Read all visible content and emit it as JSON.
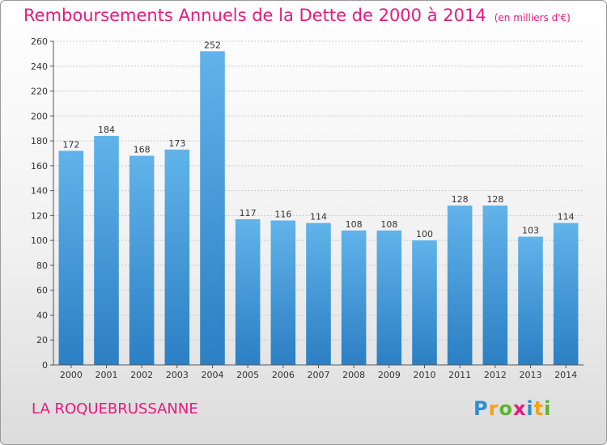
{
  "title": "Remboursements Annuels de la Dette de 2000 à 2014",
  "unit": "(en milliers d'€)",
  "commune": "LA ROQUEBRUSSANNE",
  "logo": {
    "letters": [
      "P",
      "r",
      "o",
      "x",
      "i",
      "t",
      "i"
    ],
    "colors": [
      "#2b8fd6",
      "#f3a21b",
      "#5bb531",
      "#e8197e",
      "#2b8fd6",
      "#f3a21b",
      "#5bb531"
    ]
  },
  "colors": {
    "bar_top": "#61b3ea",
    "bar_bottom": "#2b7fc3",
    "title": "#e8197e"
  },
  "chart_data": {
    "type": "bar",
    "categories": [
      "2000",
      "2001",
      "2002",
      "2003",
      "2004",
      "2005",
      "2006",
      "2007",
      "2008",
      "2009",
      "2010",
      "2011",
      "2012",
      "2013",
      "2014"
    ],
    "values": [
      172,
      184,
      168,
      173,
      252,
      117,
      116,
      114,
      108,
      108,
      100,
      128,
      128,
      103,
      114
    ],
    "ylim": [
      0,
      260
    ],
    "yticks": [
      0,
      20,
      40,
      60,
      80,
      100,
      120,
      140,
      160,
      180,
      200,
      220,
      240,
      260
    ],
    "grid": true,
    "data_labels": true
  }
}
